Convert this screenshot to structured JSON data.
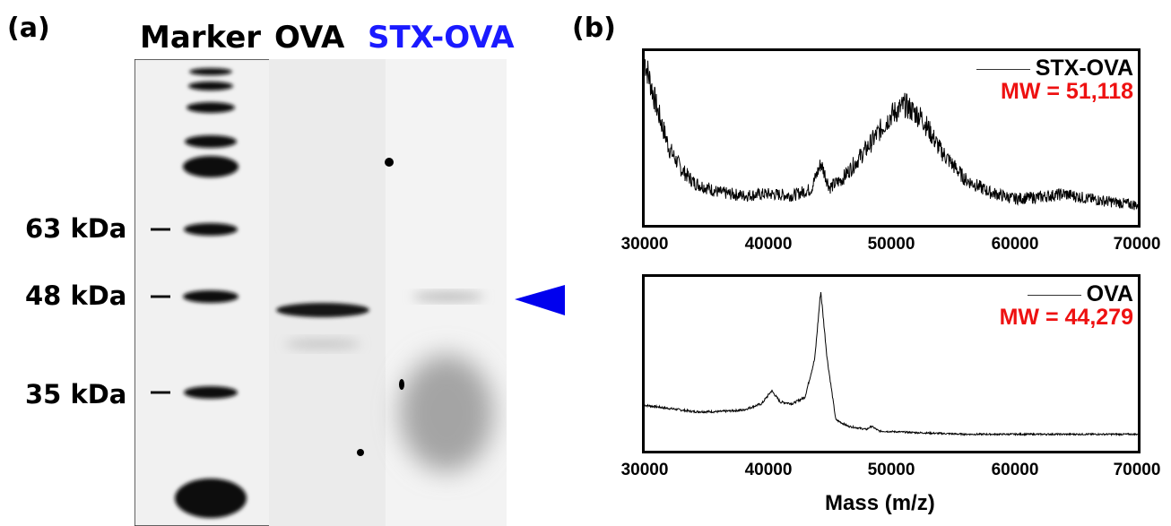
{
  "panel_a": {
    "letter": "(a)",
    "lanes": [
      {
        "label": "Marker",
        "color": "#000000"
      },
      {
        "label": "OVA",
        "color": "#000000"
      },
      {
        "label": "STX-OVA",
        "color": "#1a1aff"
      }
    ],
    "markers": [
      "63 kDa",
      "48 kDa",
      "35 kDa"
    ],
    "arrow_color": "#0000ee"
  },
  "panel_b": {
    "letter": "(b)",
    "xlabel": "Mass (m/z)"
  },
  "chart_data": [
    {
      "type": "line",
      "title": "",
      "xlabel": "",
      "ylabel": "",
      "xlim": [
        30000,
        70000
      ],
      "x_ticks": [
        "30000",
        "40000",
        "50000",
        "60000",
        "70000"
      ],
      "legend": {
        "name": "STX-OVA",
        "note": "MW = 51,118",
        "note_color": "#ee1111",
        "placement": "top-right"
      },
      "series": [
        {
          "name": "STX-OVA",
          "x": [
            30000,
            31000,
            32000,
            33000,
            34000,
            36000,
            38000,
            40000,
            42000,
            43500,
            44300,
            45000,
            46000,
            48000,
            50000,
            51118,
            52500,
            54000,
            56000,
            58000,
            60000,
            62000,
            64000,
            66000,
            68000,
            70000
          ],
          "y": [
            1.0,
            0.7,
            0.45,
            0.32,
            0.24,
            0.18,
            0.16,
            0.17,
            0.16,
            0.2,
            0.36,
            0.21,
            0.26,
            0.45,
            0.66,
            0.72,
            0.64,
            0.44,
            0.26,
            0.18,
            0.14,
            0.15,
            0.17,
            0.14,
            0.12,
            0.1
          ]
        }
      ]
    },
    {
      "type": "line",
      "title": "",
      "xlabel": "Mass (m/z)",
      "ylabel": "",
      "xlim": [
        30000,
        70000
      ],
      "x_ticks": [
        "30000",
        "40000",
        "50000",
        "60000",
        "70000"
      ],
      "legend": {
        "name": "OVA",
        "note": "MW = 44,279",
        "note_color": "#ee1111",
        "placement": "top-right"
      },
      "series": [
        {
          "name": "OVA",
          "x": [
            30000,
            32000,
            34000,
            36000,
            38000,
            39500,
            40300,
            41000,
            42000,
            43000,
            43800,
            44279,
            44800,
            45500,
            46500,
            48000,
            48400,
            49000,
            52000,
            56000,
            60000,
            65000,
            70000
          ],
          "y": [
            0.26,
            0.24,
            0.22,
            0.22,
            0.23,
            0.27,
            0.35,
            0.28,
            0.27,
            0.31,
            0.55,
            0.97,
            0.55,
            0.17,
            0.13,
            0.11,
            0.13,
            0.1,
            0.09,
            0.08,
            0.08,
            0.08,
            0.08
          ]
        }
      ]
    }
  ]
}
